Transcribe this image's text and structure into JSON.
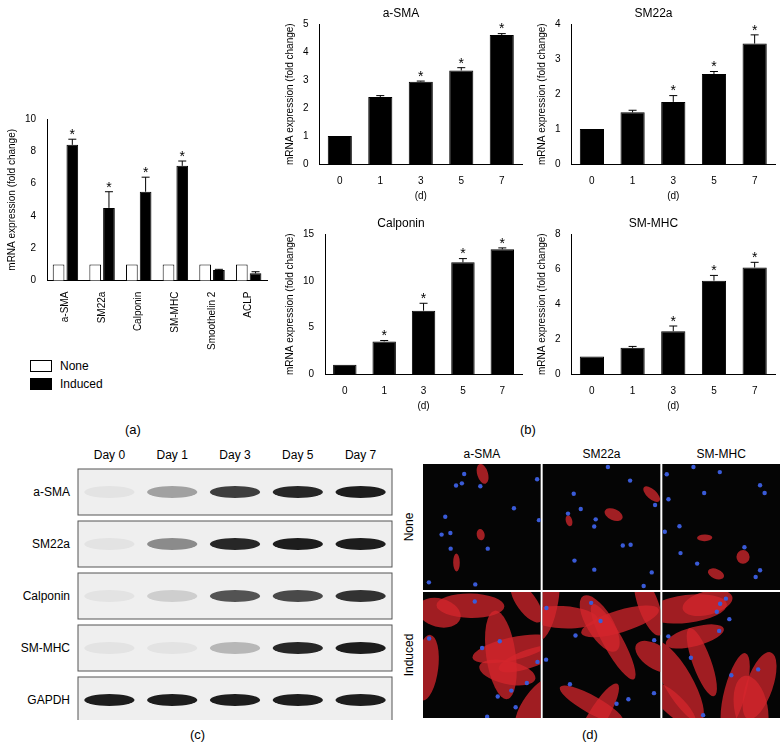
{
  "panels": [
    "(a)",
    "(b)",
    "(c)",
    "(d)"
  ],
  "chart_data": [
    {
      "type": "bar",
      "categories": [
        "a-SMA",
        "SM22a",
        "Calponin",
        "SM-MHC",
        "Smoothelin 2",
        "ACLP"
      ],
      "series": [
        {
          "name": "None",
          "color": "#ffffff",
          "values": [
            1,
            1,
            1,
            1,
            1,
            1
          ],
          "errors": [
            0,
            0,
            0,
            0,
            0,
            0
          ]
        },
        {
          "name": "Induced",
          "color": "#000000",
          "values": [
            8.4,
            4.5,
            5.5,
            7.1,
            0.65,
            0.45
          ],
          "errors": [
            0.35,
            1.0,
            0.9,
            0.3,
            0.05,
            0.1
          ]
        }
      ],
      "y_label": "mRNA expression (fold change)",
      "ylim": [
        0,
        10
      ],
      "yticks": [
        0,
        2,
        4,
        6,
        8,
        10
      ],
      "grid": false,
      "legend": "bottom-left",
      "annotations": [
        {
          "category": "a-SMA",
          "series": "Induced",
          "text": "*"
        },
        {
          "category": "SM22a",
          "series": "Induced",
          "text": "*"
        },
        {
          "category": "Calponin",
          "series": "Induced",
          "text": "*"
        },
        {
          "category": "SM-MHC",
          "series": "Induced",
          "text": "*"
        }
      ]
    },
    {
      "type": "bar",
      "title": "a-SMA",
      "categories": [
        "0",
        "1",
        "3",
        "5",
        "7"
      ],
      "values": [
        1,
        2.4,
        2.95,
        3.35,
        4.62
      ],
      "errors": [
        0,
        0.05,
        0.02,
        0.1,
        0.05
      ],
      "color": "#000000",
      "x_label": "(d)",
      "y_label": "mRNA expression (fold change)",
      "ylim": [
        0,
        5
      ],
      "yticks": [
        0,
        1,
        2,
        3,
        4,
        5
      ],
      "grid": false,
      "annotations": [
        {
          "category": "3",
          "text": "*"
        },
        {
          "category": "5",
          "text": "*"
        },
        {
          "category": "7",
          "text": "*"
        }
      ]
    },
    {
      "type": "bar",
      "title": "SM22a",
      "categories": [
        "0",
        "1",
        "3",
        "5",
        "7"
      ],
      "values": [
        1,
        1.48,
        1.78,
        2.58,
        3.45
      ],
      "errors": [
        0,
        0.06,
        0.18,
        0.07,
        0.25
      ],
      "color": "#000000",
      "x_label": "(d)",
      "y_label": "mRNA expression (fold change)",
      "ylim": [
        0,
        4
      ],
      "yticks": [
        0,
        1,
        2,
        3,
        4
      ],
      "grid": false,
      "annotations": [
        {
          "category": "3",
          "text": "*"
        },
        {
          "category": "5",
          "text": "*"
        },
        {
          "category": "7",
          "text": "*"
        }
      ]
    },
    {
      "type": "bar",
      "title": "Calponin",
      "categories": [
        "0",
        "1",
        "3",
        "5",
        "7"
      ],
      "values": [
        1,
        3.5,
        6.8,
        12,
        13.4
      ],
      "errors": [
        0,
        0.1,
        0.8,
        0.4,
        0.15
      ],
      "color": "#000000",
      "x_label": "(d)",
      "y_label": "mRNA expression (fold change)",
      "ylim": [
        0,
        15
      ],
      "yticks": [
        0,
        5,
        10,
        15
      ],
      "grid": false,
      "annotations": [
        {
          "category": "1",
          "text": "*"
        },
        {
          "category": "3",
          "text": "*"
        },
        {
          "category": "5",
          "text": "*"
        },
        {
          "category": "7",
          "text": "*"
        }
      ]
    },
    {
      "type": "bar",
      "title": "SM-MHC",
      "categories": [
        "0",
        "1",
        "3",
        "5",
        "7"
      ],
      "values": [
        1,
        1.5,
        2.45,
        5.35,
        6.1
      ],
      "errors": [
        0,
        0.08,
        0.3,
        0.3,
        0.3
      ],
      "color": "#000000",
      "x_label": "(d)",
      "y_label": "mRNA expression (fold change)",
      "ylim": [
        0,
        8
      ],
      "yticks": [
        0,
        2,
        4,
        6,
        8
      ],
      "grid": false,
      "annotations": [
        {
          "category": "3",
          "text": "*"
        },
        {
          "category": "5",
          "text": "*"
        },
        {
          "category": "7",
          "text": "*"
        }
      ]
    }
  ],
  "blot": {
    "lanes": [
      "Day 0",
      "Day 1",
      "Day 3",
      "Day 5",
      "Day 7"
    ],
    "rows": [
      {
        "label": "a-SMA",
        "band_intensity": [
          0.05,
          0.35,
          0.8,
          0.9,
          0.95
        ]
      },
      {
        "label": "SM22a",
        "band_intensity": [
          0.05,
          0.45,
          0.9,
          0.95,
          0.95
        ]
      },
      {
        "label": "Calponin",
        "band_intensity": [
          0.05,
          0.15,
          0.7,
          0.75,
          0.85
        ]
      },
      {
        "label": "SM-MHC",
        "band_intensity": [
          0.05,
          0.05,
          0.25,
          0.9,
          0.95
        ]
      },
      {
        "label": "GAPDH",
        "band_intensity": [
          0.95,
          0.95,
          0.95,
          0.95,
          0.95
        ]
      }
    ]
  },
  "images": {
    "columns": [
      "a-SMA",
      "SM22a",
      "SM-MHC"
    ],
    "rows": [
      "None",
      "Induced"
    ]
  }
}
